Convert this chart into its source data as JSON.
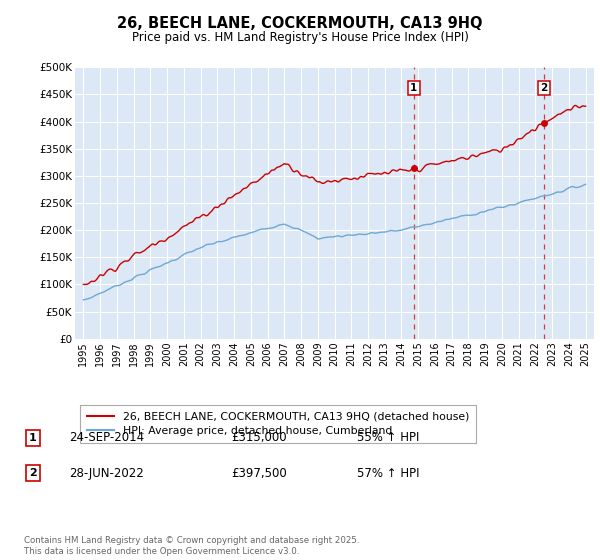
{
  "title": "26, BEECH LANE, COCKERMOUTH, CA13 9HQ",
  "subtitle": "Price paid vs. HM Land Registry's House Price Index (HPI)",
  "legend_line1": "26, BEECH LANE, COCKERMOUTH, CA13 9HQ (detached house)",
  "legend_line2": "HPI: Average price, detached house, Cumberland",
  "sale1_date": "24-SEP-2014",
  "sale1_price": 315000,
  "sale1_pct": "55% ↑ HPI",
  "sale2_date": "28-JUN-2022",
  "sale2_price": 397500,
  "sale2_pct": "57% ↑ HPI",
  "sale1_x": 2014.73,
  "sale2_x": 2022.49,
  "ylim": [
    0,
    500000
  ],
  "xlim": [
    1994.5,
    2025.5
  ],
  "red_color": "#cc0000",
  "blue_color": "#6fa8d4",
  "bg_color": "#dce8f5",
  "copyright": "Contains HM Land Registry data © Crown copyright and database right 2025.\nThis data is licensed under the Open Government Licence v3.0.",
  "yticks": [
    0,
    50000,
    100000,
    150000,
    200000,
    250000,
    300000,
    350000,
    400000,
    450000,
    500000
  ],
  "ytick_labels": [
    "£0",
    "£50K",
    "£100K",
    "£150K",
    "£200K",
    "£250K",
    "£300K",
    "£350K",
    "£400K",
    "£450K",
    "£500K"
  ],
  "xticks": [
    1995,
    1996,
    1997,
    1998,
    1999,
    2000,
    2001,
    2002,
    2003,
    2004,
    2005,
    2006,
    2007,
    2008,
    2009,
    2010,
    2011,
    2012,
    2013,
    2014,
    2015,
    2016,
    2017,
    2018,
    2019,
    2020,
    2021,
    2022,
    2023,
    2024,
    2025
  ]
}
